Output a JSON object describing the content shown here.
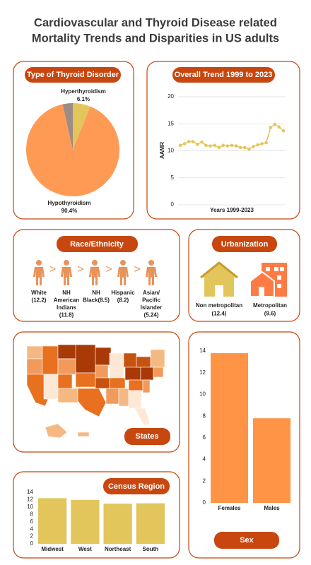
{
  "title": [
    "Cardiovascular and Thyroid Disease related",
    "Mortality Trends and Disparities in US adults"
  ],
  "chart_data": [
    {
      "type": "pie",
      "title": "Type of Thyroid Disorder",
      "categories": [
        "Hyperthyroidism",
        "Hypothyroidism",
        null
      ],
      "values": [
        6.1,
        90.4,
        3.5
      ],
      "value_labels": [
        "6.1%",
        "90.4%",
        null
      ],
      "colors": [
        "#e2c65c",
        "#ff9a55",
        "#9d8b86"
      ]
    },
    {
      "type": "line",
      "title": "Overall Trend 1999 to 2023",
      "ylabel": "AAMR",
      "xlabel": "Years 1999-2023",
      "values": [
        11.0,
        11.3,
        11.7,
        11.7,
        11.2,
        11.6,
        11.0,
        10.9,
        11.0,
        10.6,
        11.0,
        10.9,
        11.0,
        10.9,
        10.6,
        10.6,
        10.3,
        10.8,
        11.1,
        11.3,
        11.5,
        14.3,
        14.9,
        14.4,
        13.7
      ],
      "ylim": [
        0,
        20
      ],
      "yticks": [
        0,
        5,
        10,
        15,
        20
      ],
      "grid": true,
      "color": "#e2c65c"
    },
    {
      "type": "bar",
      "title": "Census Region",
      "categories": [
        "Midwest",
        "West",
        "Northeast",
        "South"
      ],
      "values": [
        12.4,
        11.9,
        10.9,
        11.0
      ],
      "ylim": [
        0,
        14
      ],
      "yticks": [
        0,
        2,
        4,
        6,
        8,
        10,
        12,
        14
      ],
      "color": "#e2c65c"
    },
    {
      "type": "bar",
      "title": "Sex",
      "categories": [
        "Females",
        "Males"
      ],
      "values": [
        13.8,
        7.8
      ],
      "ylim": [
        0,
        14
      ],
      "yticks": [
        0,
        2,
        4,
        6,
        8,
        10,
        12,
        14
      ],
      "color": "#ff9447"
    }
  ],
  "race": {
    "title": "Race/Ethnicity",
    "items": [
      {
        "lines": [
          "White",
          "(12.2)"
        ]
      },
      {
        "lines": [
          "NH",
          "American",
          "Indians",
          "(11.8)"
        ]
      },
      {
        "lines": [
          "NH",
          "Black(8.5)"
        ]
      },
      {
        "lines": [
          "Hispanic",
          "(8.2)"
        ]
      },
      {
        "lines": [
          "Asian/",
          "Pacific",
          "Islander",
          "(5.24)"
        ]
      }
    ],
    "separator": ">"
  },
  "urbanization": {
    "title": "Urbanization",
    "items": [
      {
        "lines": [
          "Non metropolitan",
          "(12.4)"
        ]
      },
      {
        "lines": [
          "Metropolitan",
          "(9.6)"
        ]
      }
    ]
  },
  "states": {
    "label": "States"
  }
}
